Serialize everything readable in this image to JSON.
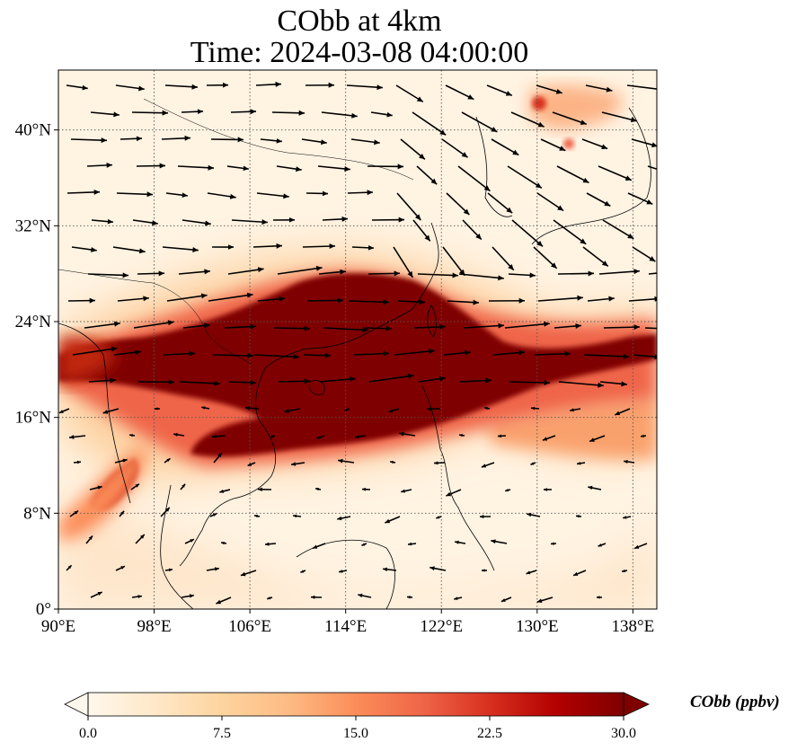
{
  "title": {
    "line1": "CObb at 4km",
    "line2": "Time: 2024-03-08 04:00:00"
  },
  "map": {
    "lon_range": [
      90,
      140
    ],
    "lat_range": [
      0,
      45
    ],
    "lon_ticks": [
      {
        "value": 90,
        "label": "90°E"
      },
      {
        "value": 98,
        "label": "98°E"
      },
      {
        "value": 106,
        "label": "106°E"
      },
      {
        "value": 114,
        "label": "114°E"
      },
      {
        "value": 122,
        "label": "122°E"
      },
      {
        "value": 130,
        "label": "130°E"
      },
      {
        "value": 138,
        "label": "138°E"
      }
    ],
    "lat_ticks": [
      {
        "value": 0,
        "label": "0°"
      },
      {
        "value": 8,
        "label": "8°N"
      },
      {
        "value": 16,
        "label": "16°N"
      },
      {
        "value": 24,
        "label": "24°N"
      },
      {
        "value": 32,
        "label": "32°N"
      },
      {
        "value": 40,
        "label": "40°N"
      }
    ],
    "gridlines": "dotted",
    "field": "CObb",
    "units": "ppbv",
    "vectors": "wind"
  },
  "colorbar": {
    "title": "CObb (ppbv)",
    "min": 0.0,
    "max": 30.0,
    "ticks": [
      {
        "value": 0,
        "label": "0.0"
      },
      {
        "value": 7.5,
        "label": "7.5"
      },
      {
        "value": 15,
        "label": "15.0"
      },
      {
        "value": 22.5,
        "label": "22.5"
      },
      {
        "value": 30,
        "label": "30.0"
      }
    ],
    "colormap": [
      "#fff7ec",
      "#fee8c8",
      "#fdd49e",
      "#fdbb84",
      "#fc8d59",
      "#ef6548",
      "#d7301f",
      "#b30000",
      "#7f0000"
    ],
    "extend": "both"
  }
}
